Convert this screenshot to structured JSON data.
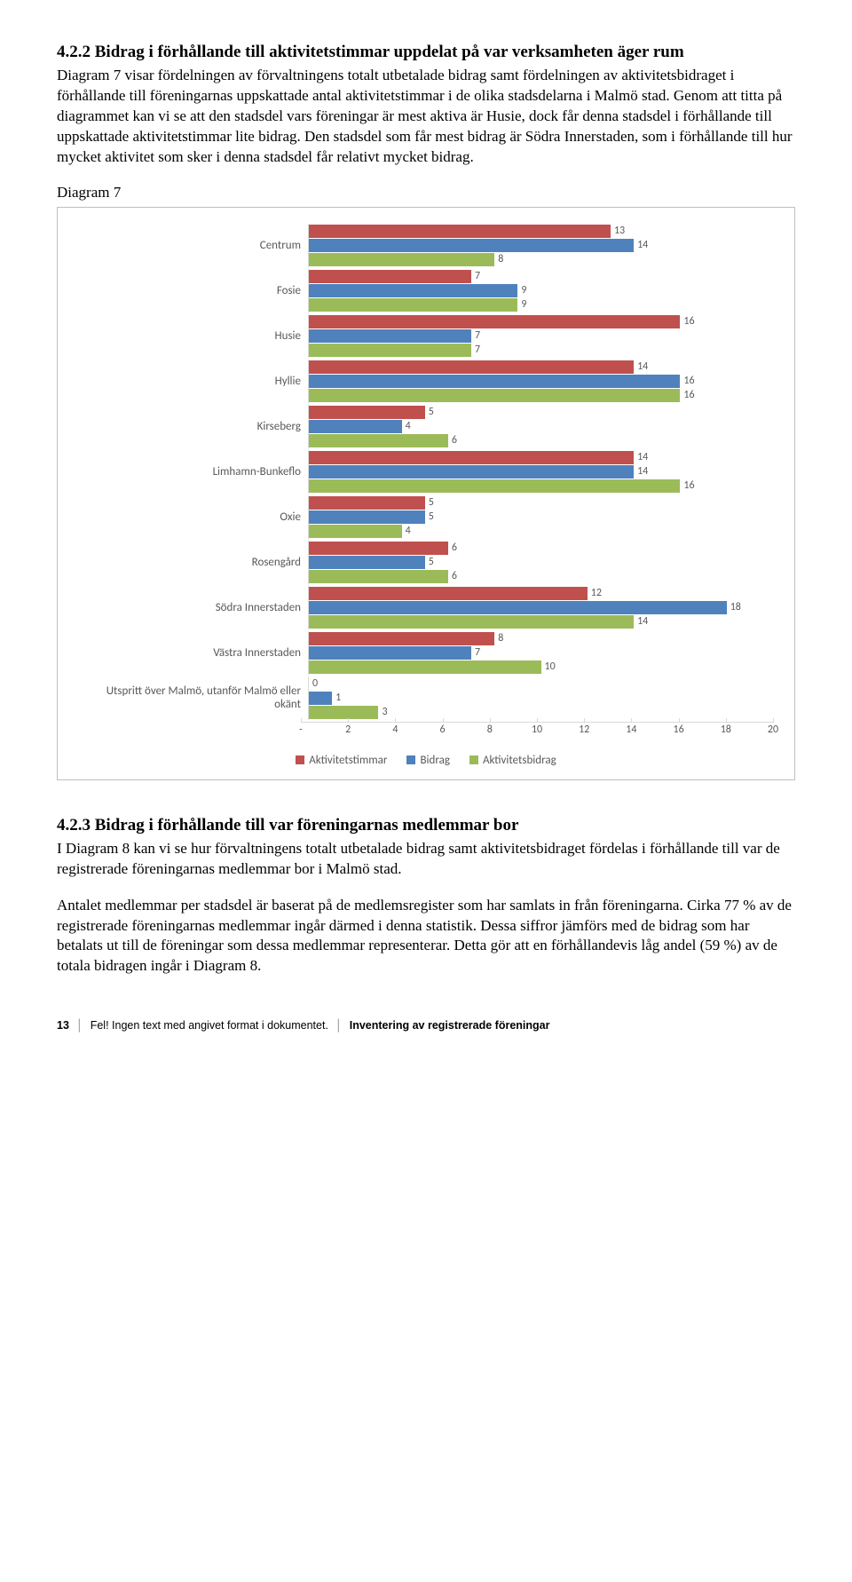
{
  "section1": {
    "heading": "4.2.2 Bidrag i förhållande till aktivitetstimmar uppdelat på var verksamheten äger rum",
    "paragraph": "Diagram 7 visar fördelningen av förvaltningens totalt utbetalade bidrag samt fördelningen av aktivitetsbidraget i förhållande till föreningarnas uppskattade antal aktivitetstimmar i de olika stadsdelarna i Malmö stad. Genom att titta på diagrammet kan vi se att den stadsdel vars föreningar är mest aktiva är Husie, dock får denna stadsdel i förhållande till uppskattade aktivitetstimmar lite bidrag. Den stadsdel som får mest bidrag är Södra Innerstaden, som i förhållande till hur mycket aktivitet som sker i denna stadsdel får relativt mycket bidrag."
  },
  "chart": {
    "title": "Diagram 7",
    "type": "bar",
    "x_max": 20,
    "x_ticks": [
      "-",
      "2",
      "4",
      "6",
      "8",
      "10",
      "12",
      "14",
      "16",
      "18",
      "20"
    ],
    "series": [
      {
        "name": "Aktivitetstimmar",
        "color": "#c0504d"
      },
      {
        "name": "Bidrag",
        "color": "#4f81bd"
      },
      {
        "name": "Aktivitetsbidrag",
        "color": "#9bbb59"
      }
    ],
    "categories": [
      {
        "label": "Centrum",
        "values": [
          13,
          14,
          8
        ]
      },
      {
        "label": "Fosie",
        "values": [
          7,
          9,
          9
        ]
      },
      {
        "label": "Husie",
        "values": [
          16,
          7,
          7
        ]
      },
      {
        "label": "Hyllie",
        "values": [
          14,
          16,
          16
        ]
      },
      {
        "label": "Kirseberg",
        "values": [
          5,
          4,
          6
        ]
      },
      {
        "label": "Limhamn-Bunkeflo",
        "values": [
          14,
          14,
          16
        ]
      },
      {
        "label": "Oxie",
        "values": [
          5,
          5,
          4
        ]
      },
      {
        "label": "Rosengård",
        "values": [
          6,
          5,
          6
        ]
      },
      {
        "label": "Södra Innerstaden",
        "values": [
          12,
          18,
          14
        ]
      },
      {
        "label": "Västra Innerstaden",
        "values": [
          8,
          7,
          10
        ]
      },
      {
        "label": "Utspritt över Malmö, utanför Malmö eller okänt",
        "values": [
          0,
          1,
          3
        ]
      }
    ],
    "grid_color": "#d9d9d9",
    "label_color": "#595959",
    "label_fontsize": 13
  },
  "section2": {
    "heading": "4.2.3 Bidrag i förhållande till var föreningarnas medlemmar bor",
    "paragraph1": "I Diagram 8 kan vi se hur förvaltningens totalt utbetalade bidrag samt aktivitetsbidraget fördelas i förhållande till var de registrerade föreningarnas medlemmar bor i Malmö stad.",
    "paragraph2": "Antalet medlemmar per stadsdel är baserat på de medlemsregister som har samlats in från föreningarna. Cirka 77 % av de registrerade föreningarnas medlemmar ingår därmed i denna statistik. Dessa siffror jämförs med de bidrag som har betalats ut till de föreningar som dessa medlemmar representerar. Detta gör att en förhållandevis låg andel (59 %) av de totala bidragen ingår i Diagram 8."
  },
  "footer": {
    "page": "13",
    "left": "Fel! Ingen text med angivet format i dokumentet.",
    "right": "Inventering av registrerade föreningar"
  }
}
